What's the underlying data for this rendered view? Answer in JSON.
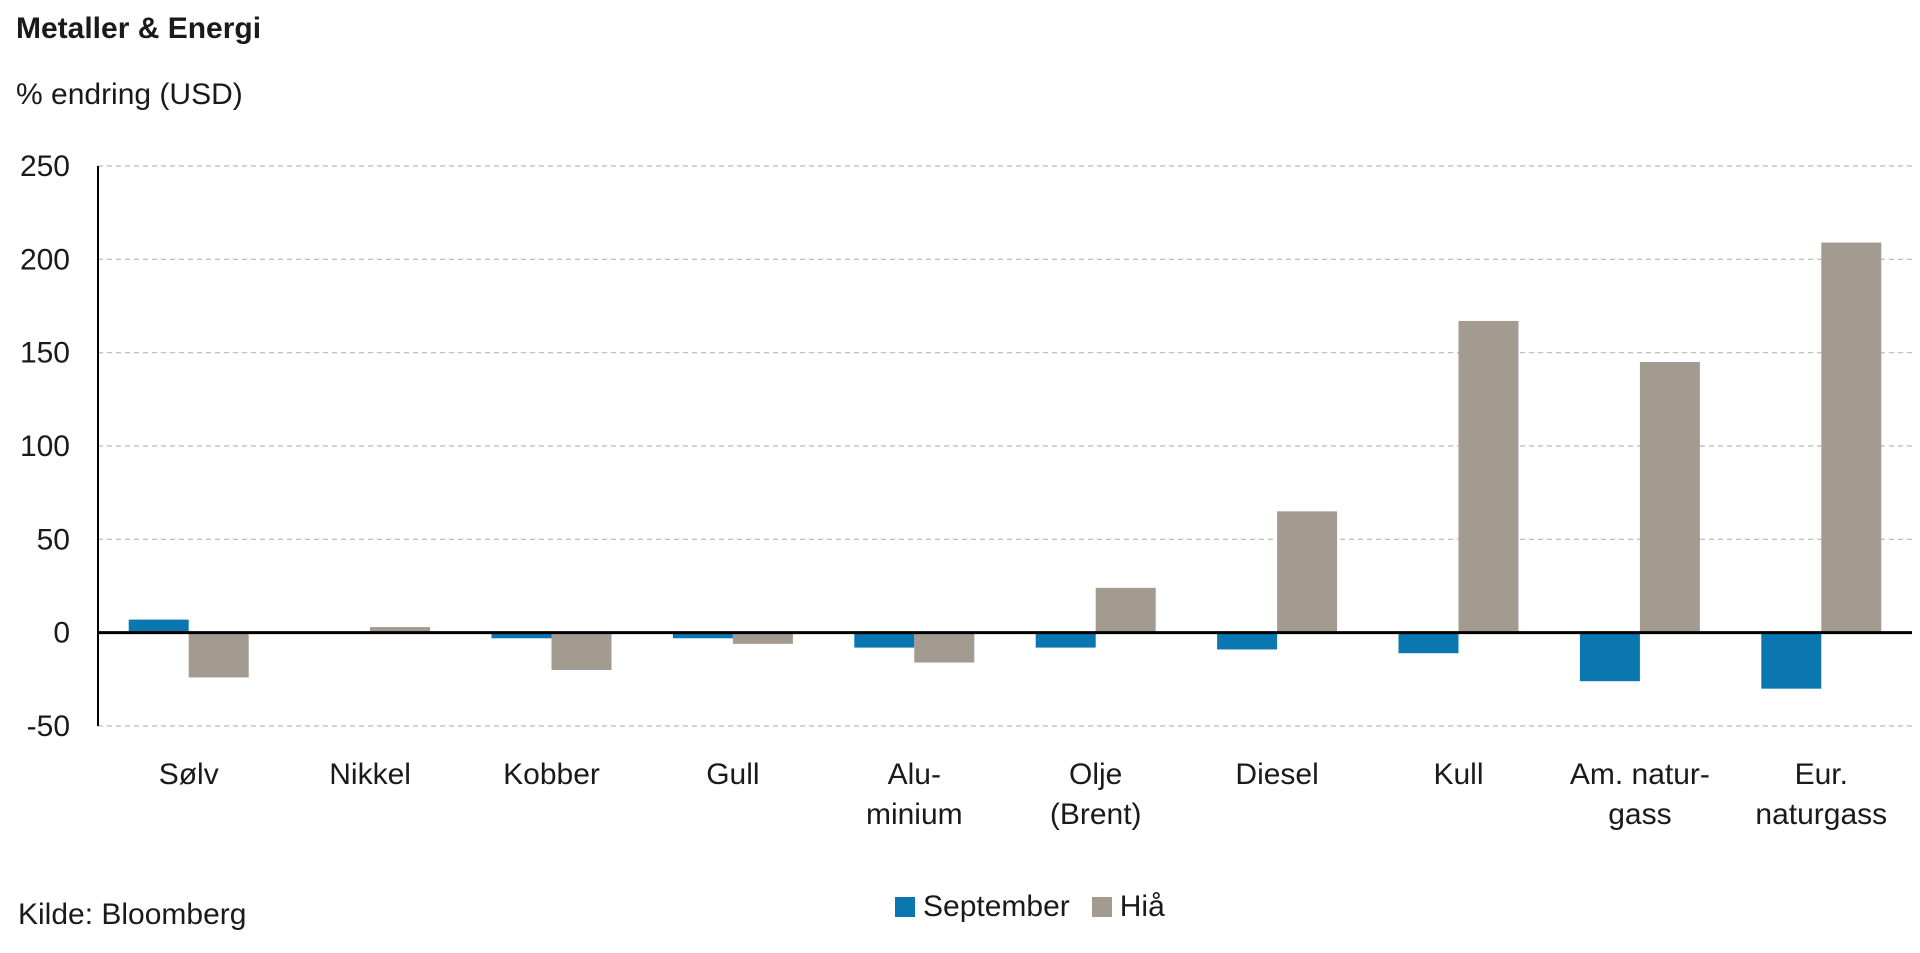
{
  "title": "Metaller & Energi",
  "subtitle": "% endring (USD)",
  "source": "Kilde: Bloomberg",
  "colors": {
    "september": "#0a77b0",
    "hia": "#a39a90",
    "axis": "#000000",
    "grid": "#b8b8b8"
  },
  "chart_data": {
    "type": "bar",
    "title": "Metaller & Energi",
    "ylabel": "% endring (USD)",
    "xlabel": "",
    "ylim": [
      -50,
      250
    ],
    "yticks": [
      -50,
      0,
      50,
      100,
      150,
      200,
      250
    ],
    "grid": true,
    "legend_position": "bottom",
    "categories": [
      [
        "Sølv"
      ],
      [
        "Nikkel"
      ],
      [
        "Kobber"
      ],
      [
        "Gull"
      ],
      [
        "Alu-",
        "minium"
      ],
      [
        "Olje",
        "(Brent)"
      ],
      [
        "Diesel"
      ],
      [
        "Kull"
      ],
      [
        "Am. natur-",
        "gass"
      ],
      [
        "Eur.",
        "naturgass"
      ]
    ],
    "series": [
      {
        "name": "September",
        "values": [
          7,
          0,
          -3,
          -3,
          -8,
          -8,
          -9,
          -11,
          -26,
          -30
        ]
      },
      {
        "name": "Hiå",
        "values": [
          -24,
          3,
          -20,
          -6,
          -16,
          24,
          65,
          167,
          145,
          209
        ]
      }
    ]
  }
}
